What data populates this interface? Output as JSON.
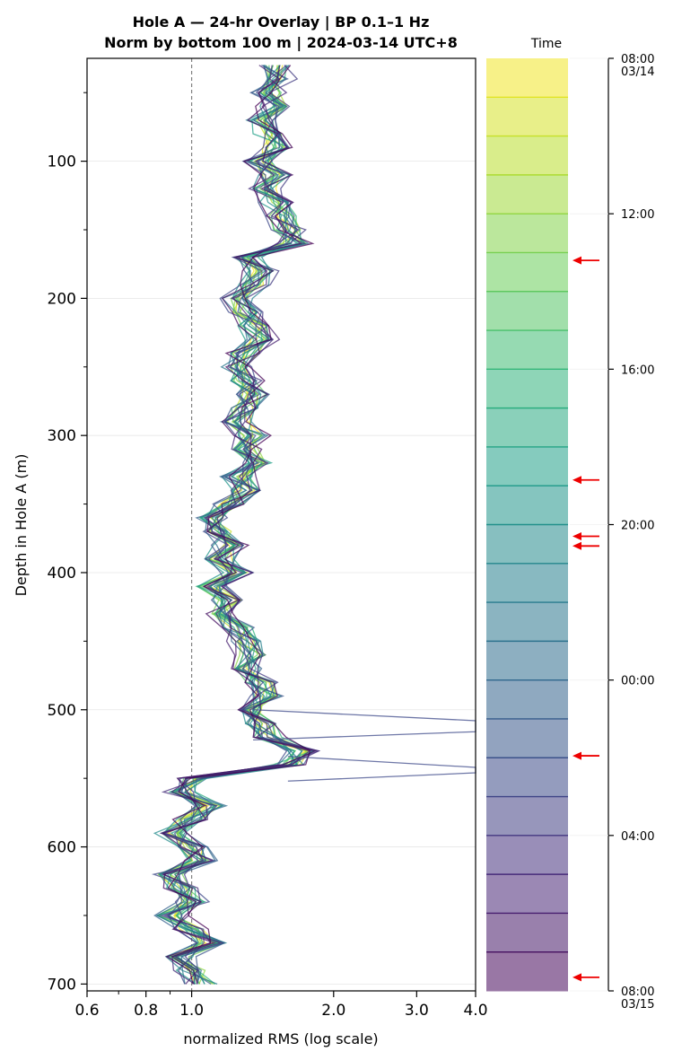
{
  "chart_data": {
    "type": "line",
    "title": "Hole A — 24-hr Overlay  |  BP 0.1–1 Hz",
    "subtitle": "Norm by bottom 100 m  |  2024-03-14 UTC+8",
    "xlabel": "normalized RMS  (log scale)",
    "ylabel": "Depth in Hole A (m)",
    "x_scale": "log",
    "xlim": [
      0.6,
      4.0
    ],
    "ylim": [
      705,
      25
    ],
    "x_ticks": [
      "0.6",
      "0.8",
      "1.0",
      "2.0",
      "3.0",
      "4.0"
    ],
    "x_tick_values": [
      0.6,
      0.8,
      1.0,
      2.0,
      3.0,
      4.0
    ],
    "y_ticks": [
      "100",
      "200",
      "300",
      "400",
      "500",
      "600",
      "700"
    ],
    "y_tick_values": [
      100,
      200,
      300,
      400,
      500,
      600,
      700
    ],
    "reference_line_x": 1.0,
    "grid": "horizontal",
    "colormap": "viridis (reversed)",
    "depth_profile": {
      "depth": [
        30,
        40,
        50,
        60,
        70,
        80,
        90,
        100,
        110,
        120,
        130,
        140,
        150,
        160,
        170,
        180,
        190,
        200,
        210,
        220,
        230,
        240,
        250,
        260,
        270,
        280,
        290,
        300,
        310,
        320,
        330,
        340,
        350,
        360,
        370,
        380,
        390,
        400,
        410,
        420,
        430,
        440,
        450,
        460,
        470,
        480,
        490,
        500,
        510,
        520,
        530,
        540,
        550,
        560,
        570,
        580,
        590,
        600,
        610,
        620,
        630,
        640,
        650,
        660,
        670,
        680,
        690,
        700
      ],
      "median_rms": [
        1.5,
        1.55,
        1.45,
        1.5,
        1.4,
        1.45,
        1.5,
        1.4,
        1.5,
        1.45,
        1.5,
        1.55,
        1.6,
        1.65,
        1.3,
        1.4,
        1.35,
        1.25,
        1.3,
        1.35,
        1.4,
        1.3,
        1.25,
        1.3,
        1.35,
        1.3,
        1.25,
        1.35,
        1.3,
        1.4,
        1.25,
        1.3,
        1.2,
        1.1,
        1.15,
        1.2,
        1.15,
        1.25,
        1.1,
        1.2,
        1.15,
        1.25,
        1.3,
        1.35,
        1.3,
        1.4,
        1.45,
        1.35,
        1.4,
        1.45,
        1.7,
        1.6,
        1.0,
        0.95,
        1.1,
        1.0,
        0.9,
        1.0,
        1.05,
        0.9,
        0.95,
        1.0,
        0.9,
        1.0,
        1.1,
        0.95,
        1.0,
        1.05
      ],
      "spread": 0.06
    },
    "outliers": [
      {
        "depth_from": 508,
        "depth_to": 516,
        "x": 4.0
      },
      {
        "depth_from": 542,
        "depth_to": 546,
        "x": 4.0
      }
    ],
    "colorbar": {
      "label": "Time",
      "ticks": [
        "08:00\n03/14",
        "12:00",
        "16:00",
        "20:00",
        "00:00",
        "04:00",
        "08:00\n03/15"
      ],
      "tick_hours": [
        0,
        4,
        8,
        12,
        16,
        20,
        24
      ],
      "segments": 24
    },
    "arrows_hours": [
      5.2,
      10.85,
      12.3,
      12.55,
      17.95,
      23.65
    ],
    "arrow_color": "#ee0000"
  }
}
